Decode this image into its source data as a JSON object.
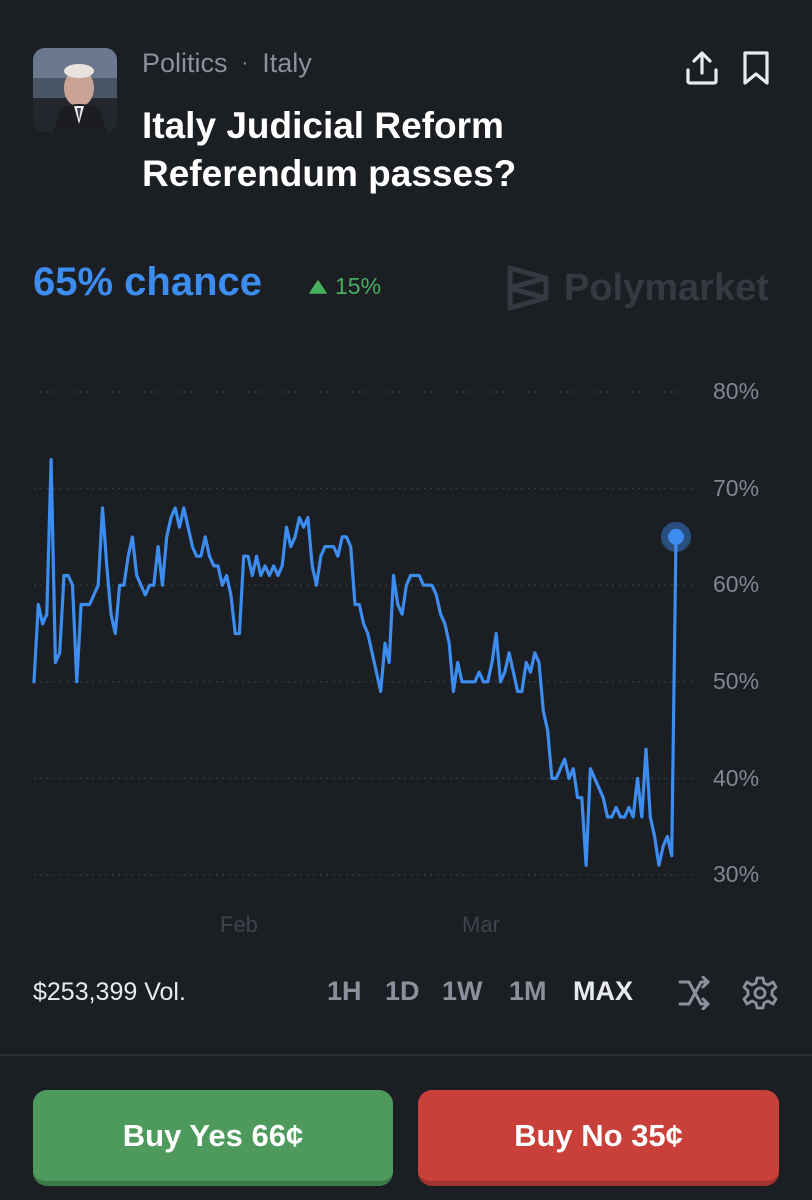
{
  "market": {
    "category": "Politics",
    "subcategory": "Italy",
    "title": "Italy Judicial Reform Referendum passes?",
    "chance_label": "65% chance",
    "change_label": "15%",
    "brand": "Polymarket",
    "volume": "$253,399 Vol."
  },
  "icons": {
    "share": "share-icon",
    "bookmark": "bookmark-icon",
    "change_up": "triangle-up-icon",
    "shuffle": "shuffle-icon",
    "settings": "gear-icon"
  },
  "ranges": [
    "1H",
    "1D",
    "1W",
    "1M",
    "MAX"
  ],
  "active_range": "MAX",
  "actions": {
    "buy_yes": "Buy Yes 66¢",
    "buy_no": "Buy No 35¢"
  },
  "colors": {
    "accent": "#3d8cf0",
    "up": "#46b05e",
    "yes": "#4e9a5d",
    "no": "#c9403a"
  },
  "chart_data": {
    "type": "line",
    "title": "",
    "xlabel": "",
    "ylabel": "",
    "x_ticks": [
      "Feb",
      "Mar"
    ],
    "y_ticks": [
      "80%",
      "70%",
      "60%",
      "50%",
      "40%",
      "30%"
    ],
    "ylim": [
      30,
      80
    ],
    "grid": true,
    "series": [
      {
        "color": "#3d8cf0",
        "values": [
          50,
          58,
          56,
          57,
          73,
          52,
          53,
          61,
          61,
          60,
          50,
          58,
          58,
          58,
          59,
          60,
          68,
          62,
          57,
          55,
          60,
          60,
          63,
          65,
          61,
          60,
          59,
          60,
          60,
          64,
          60,
          65,
          67,
          68,
          66,
          68,
          66,
          64,
          63,
          63,
          65,
          63,
          62,
          62,
          60,
          61,
          59,
          55,
          55,
          63,
          63,
          61,
          63,
          61,
          62,
          61,
          62,
          61,
          62,
          66,
          64,
          65,
          67,
          66,
          67,
          62,
          60,
          63,
          64,
          64,
          64,
          63,
          65,
          65,
          64,
          58,
          58,
          56,
          55,
          53,
          51,
          49,
          54,
          52,
          61,
          58,
          57,
          60,
          61,
          61,
          61,
          60,
          60,
          60,
          59,
          57,
          56,
          54,
          49,
          52,
          50,
          50,
          50,
          50,
          51,
          50,
          50,
          52,
          55,
          50,
          51,
          53,
          51,
          49,
          49,
          52,
          51,
          53,
          52,
          47,
          45,
          40,
          40,
          41,
          42,
          40,
          41,
          38,
          38,
          31,
          41,
          40,
          39,
          38,
          36,
          36,
          37,
          36,
          36,
          37,
          36,
          40,
          36,
          43,
          36,
          34,
          31,
          33,
          34,
          32,
          65
        ]
      }
    ]
  }
}
